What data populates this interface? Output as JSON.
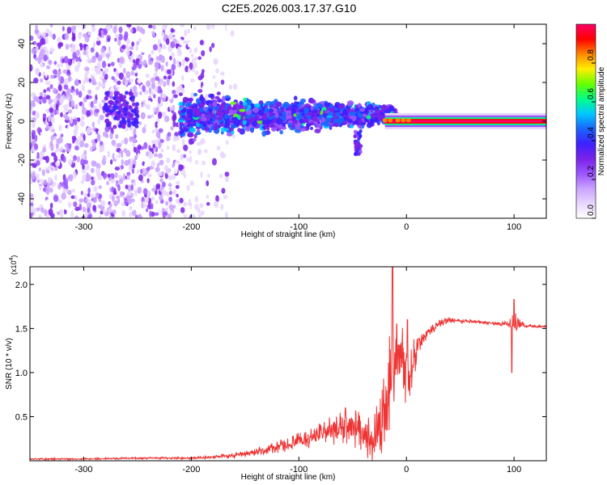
{
  "title": "C2E5.2026.003.17.37.G10",
  "colors": {
    "snr_line": "#ee3333",
    "axes": "#000000",
    "colormap": [
      "#ffffff",
      "#e8d6ff",
      "#c9a2ff",
      "#9b55ff",
      "#7a22e8",
      "#3d20ff",
      "#1a66ff",
      "#00c8ff",
      "#00ff88",
      "#66ff00",
      "#ffee00",
      "#ff8800",
      "#ff0000",
      "#ff0066"
    ]
  },
  "chart_data": [
    {
      "type": "heatmap",
      "id": "spectrogram",
      "xlabel": "Height of straight line (km)",
      "ylabel": "Frequency (Hz)",
      "xlim": [
        -350,
        130
      ],
      "ylim": [
        -50,
        50
      ],
      "xticks": [
        -300,
        -200,
        -100,
        0,
        100
      ],
      "xtick_labels": [
        "-300",
        "-200",
        "-100",
        "0",
        "100"
      ],
      "yticks": [
        -40,
        -20,
        0,
        20,
        40
      ],
      "ytick_labels": [
        "-40",
        "-20",
        "0",
        "20",
        "40"
      ],
      "colorbar": {
        "label": "Normalized spectral amplitude",
        "range": [
          0,
          1
        ],
        "ticks": [
          0.0,
          0.2,
          0.4,
          0.6,
          0.8
        ],
        "tick_labels": [
          "0.0",
          "0.2",
          "0.4",
          "0.6",
          "0.8"
        ]
      },
      "features": [
        {
          "name": "broadband noise",
          "x_range": [
            -350,
            -170
          ],
          "freq_range": [
            -50,
            50
          ],
          "amplitude": 0.2
        },
        {
          "name": "emerging signal band",
          "x_range": [
            -210,
            -10
          ],
          "freq_center": 3,
          "amplitude": 0.35
        },
        {
          "name": "strong carrier line",
          "x_range": [
            0,
            130
          ],
          "freq_center": 0,
          "amplitude": 0.98
        }
      ]
    },
    {
      "type": "line",
      "id": "snr",
      "xlabel": "Height of straight line (km)",
      "ylabel": "SNR (10 * v/v)",
      "y_scale_label": "(x10",
      "y_scale_exponent": "4",
      "xlim": [
        -350,
        130
      ],
      "ylim": [
        0,
        2.2
      ],
      "xticks": [
        -300,
        -200,
        -100,
        0,
        100
      ],
      "xtick_labels": [
        "-300",
        "-200",
        "-100",
        "0",
        "100"
      ],
      "yticks": [
        0.5,
        1.0,
        1.5,
        2.0
      ],
      "ytick_labels": [
        "0.5",
        "1.0",
        "1.5",
        "2.0"
      ],
      "series": [
        {
          "name": "SNR",
          "envelope_x": [
            -350,
            -300,
            -250,
            -200,
            -180,
            -160,
            -140,
            -120,
            -100,
            -80,
            -60,
            -50,
            -40,
            -30,
            -20,
            -15,
            -10,
            -5,
            0,
            5,
            10,
            20,
            30,
            40,
            60,
            80,
            95,
            100,
            105,
            110,
            130
          ],
          "envelope_y": [
            0.02,
            0.02,
            0.03,
            0.03,
            0.04,
            0.06,
            0.1,
            0.15,
            0.22,
            0.3,
            0.38,
            0.4,
            0.32,
            0.22,
            0.55,
            1.0,
            1.05,
            1.2,
            1.0,
            1.05,
            1.3,
            1.45,
            1.55,
            1.6,
            1.58,
            1.56,
            1.55,
            1.55,
            1.55,
            1.53,
            1.52
          ],
          "noise_amplitude": [
            0.01,
            0.01,
            0.01,
            0.015,
            0.02,
            0.03,
            0.05,
            0.07,
            0.1,
            0.14,
            0.2,
            0.25,
            0.22,
            0.3,
            0.45,
            0.6,
            0.45,
            0.35,
            0.45,
            0.3,
            0.15,
            0.08,
            0.04,
            0.03,
            0.02,
            0.02,
            0.03,
            0.15,
            0.08,
            0.02,
            0.01
          ],
          "peaks": [
            {
              "x": -13,
              "y": 2.2
            },
            {
              "x": -9,
              "y": 1.55
            },
            {
              "x": 1,
              "y": 1.6
            },
            {
              "x": 100,
              "y": 1.83
            },
            {
              "x": 98,
              "y": 1.0
            }
          ]
        }
      ]
    }
  ]
}
